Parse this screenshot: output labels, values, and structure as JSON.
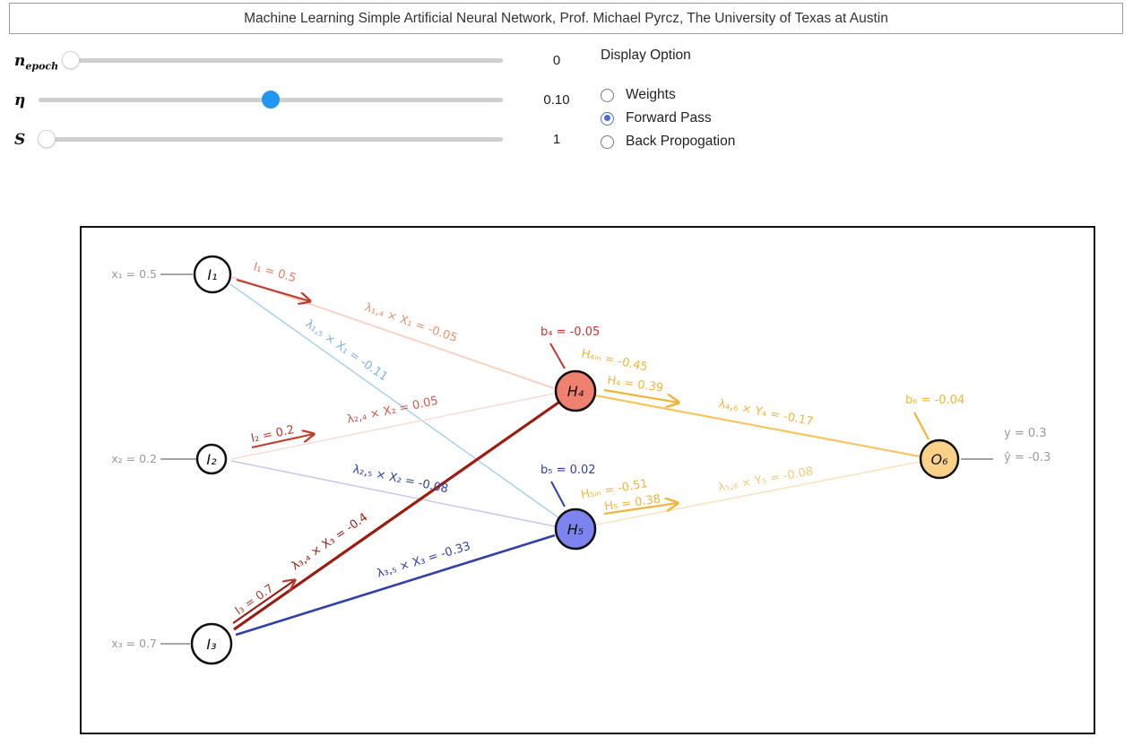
{
  "title": "Machine Learning Simple Artificial Neural Network, Prof. Michael Pyrcz, The University of Texas at Austin",
  "sliders": [
    {
      "symbol": "n",
      "subscript": "epoch",
      "value": "0",
      "fraction": 0.0
    },
    {
      "symbol": "η",
      "subscript": "",
      "value": "0.10",
      "fraction": 0.5
    },
    {
      "symbol": "S",
      "subscript": "",
      "value": "1",
      "fraction": 0.0
    }
  ],
  "display": {
    "title": "Display Option",
    "options": [
      "Weights",
      "Forward Pass",
      "Back Propogation"
    ],
    "selected": "Forward Pass"
  },
  "network": {
    "inputs": {
      "x1": "x₁ = 0.5",
      "x2": "x₂ = 0.2",
      "x3": "x₃ = 0.7",
      "I1": "I₁",
      "I2": "I₂",
      "I3": "I₃",
      "l1": "I₁ = 0.5",
      "l2": "I₂ = 0.2",
      "l3": "I₃ = 0.7"
    },
    "edges": {
      "e14": "λ₁,₄ × X₁ = -0.05",
      "e15": "λ₁,₅ × X₁ = -0.11",
      "e24": "λ₂,₄ × X₂ = 0.05",
      "e25": "λ₂,₅ × X₂ = -0.08",
      "e34": "λ₃,₄ × X₃ = -0.4",
      "e35": "λ₃,₅ × X₃ = -0.33",
      "e46": "λ₄,₆ × Y₄ = -0.17",
      "e56": "λ₅,₆ × Y₅ = -0.08"
    },
    "hidden": {
      "H4": "H₄",
      "H5": "H₅",
      "b4": "b₄ = -0.05",
      "b5": "b₅ = 0.02",
      "h4in": "H₄ᵢₙ = -0.45",
      "h4": "H₄ = 0.39",
      "h5in": "H₅ᵢₙ = -0.51",
      "h5": "H₅ = 0.38"
    },
    "output": {
      "O6": "O₆",
      "b6": "b₆ = -0.04",
      "y": "y = 0.3",
      "yhat": "ŷ = -0.3"
    }
  },
  "colors": {
    "accent": "#2196f3",
    "radio": "#4a6fd0",
    "h4_fill": "#f08070",
    "h5_fill": "#7d84f0",
    "o6_fill": "#fbd18a",
    "red": "#c0392b",
    "dark_red": "#9b1c12",
    "blue": "#3340a8",
    "light_blue": "#8fc3ea",
    "orange": "#f2b53c",
    "grey": "#888888"
  }
}
